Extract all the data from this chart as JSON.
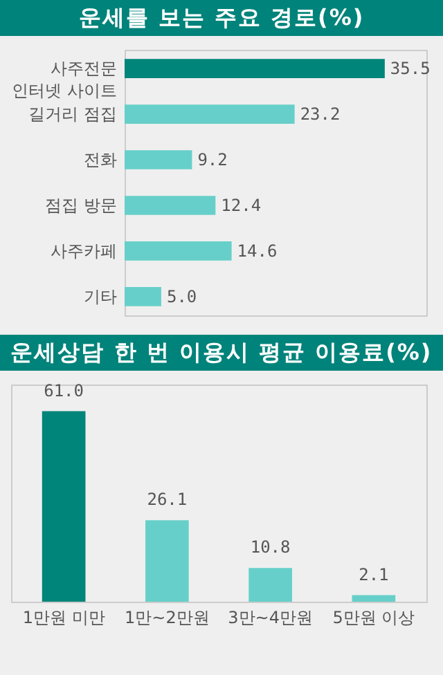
{
  "chart_data": [
    {
      "type": "bar",
      "orientation": "horizontal",
      "title": "운세를 보는 주요 경로(%)",
      "categories": [
        "사주전문 인터넷 사이트",
        "길거리 점집",
        "전화",
        "점집 방문",
        "사주카페",
        "기타"
      ],
      "values": [
        35.5,
        23.2,
        9.2,
        12.4,
        14.6,
        5.0
      ],
      "value_labels": [
        "35.5",
        "23.2",
        "9.2",
        "12.4",
        "14.6",
        "5.0"
      ],
      "colors": [
        "#00857a",
        "#67cfc9",
        "#67cfc9",
        "#67cfc9",
        "#67cfc9",
        "#67cfc9"
      ]
    },
    {
      "type": "bar",
      "title": "운세상담 한 번 이용시 평균 이용료(%)",
      "categories": [
        "1만원 미만",
        "1만~2만원",
        "3만~4만원",
        "5만원 이상"
      ],
      "values": [
        61.0,
        26.1,
        10.8,
        2.1
      ],
      "value_labels": [
        "61.0",
        "26.1",
        "10.8",
        "2.1"
      ],
      "colors": [
        "#00857a",
        "#67cfc9",
        "#67cfc9",
        "#67cfc9"
      ]
    }
  ]
}
